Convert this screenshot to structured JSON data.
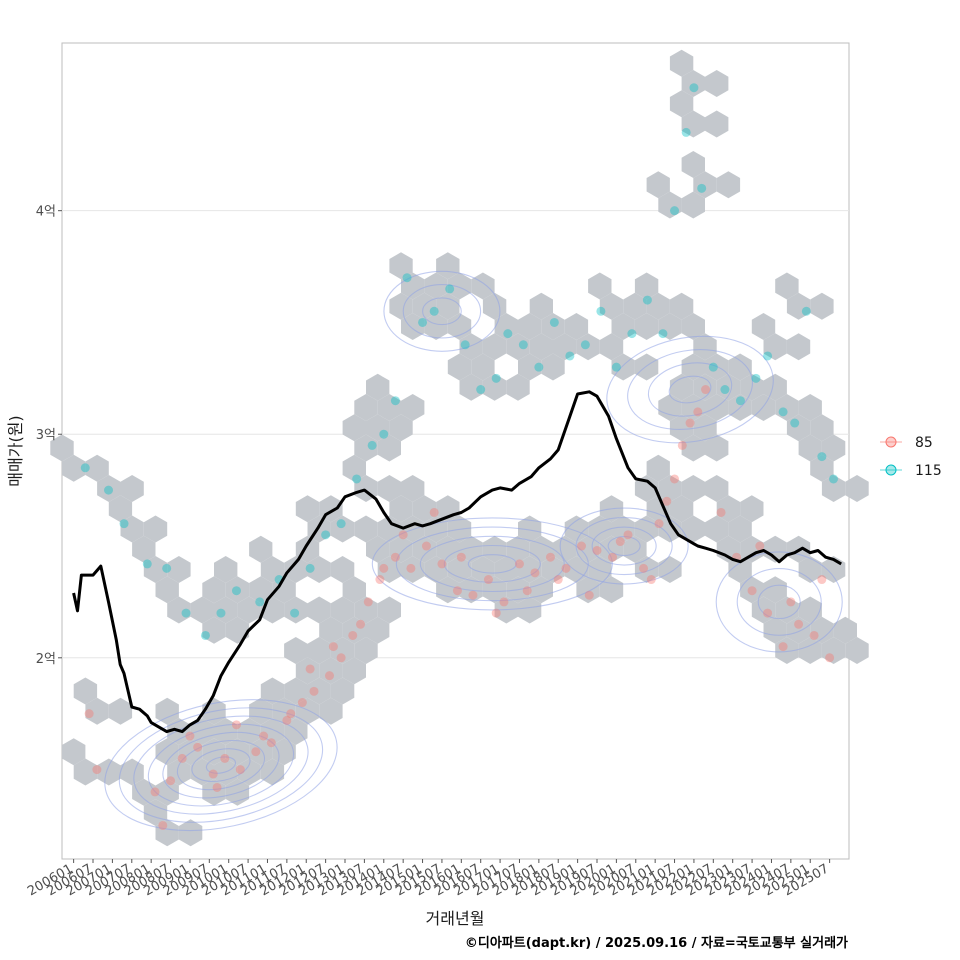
{
  "chart_data": {
    "type": "scatter",
    "xlabel": "거래년월",
    "ylabel": "매매가(원)",
    "y_ticks": [
      {
        "value": 2,
        "label": "2억"
      },
      {
        "value": 3,
        "label": "3억"
      },
      {
        "value": 4,
        "label": "4억"
      }
    ],
    "ylim": [
      1.1,
      4.75
    ],
    "xlim": [
      2005.7,
      2026.0
    ],
    "x_tick_labels": [
      "200601",
      "200607",
      "200701",
      "200707",
      "200801",
      "200807",
      "200901",
      "200907",
      "201001",
      "201007",
      "201101",
      "201107",
      "201201",
      "201207",
      "201301",
      "201307",
      "201401",
      "201407",
      "201501",
      "201507",
      "201601",
      "201607",
      "201701",
      "201707",
      "201801",
      "201807",
      "201901",
      "201907",
      "202001",
      "202007",
      "202101",
      "202107",
      "202201",
      "202207",
      "202301",
      "202307",
      "202401",
      "202407",
      "202501",
      "202507"
    ],
    "legend": {
      "placement": "right",
      "entries": [
        {
          "name": "85",
          "color": "#F8766D"
        },
        {
          "name": "115",
          "color": "#00BFC4"
        }
      ]
    },
    "trend_line": {
      "name": "moving average",
      "color": "#000000",
      "x": [
        2006.0,
        2006.1,
        2006.2,
        2006.5,
        2006.7,
        2006.9,
        2007.1,
        2007.2,
        2007.3,
        2007.5,
        2007.7,
        2007.9,
        2008.0,
        2008.2,
        2008.4,
        2008.6,
        2008.8,
        2009.0,
        2009.2,
        2009.4,
        2009.6,
        2009.8,
        2010.0,
        2010.3,
        2010.5,
        2010.8,
        2011.0,
        2011.3,
        2011.5,
        2011.8,
        2012.0,
        2012.3,
        2012.5,
        2012.8,
        2013.0,
        2013.3,
        2013.5,
        2013.8,
        2014.0,
        2014.2,
        2014.5,
        2014.8,
        2015.0,
        2015.2,
        2015.5,
        2015.8,
        2016.0,
        2016.2,
        2016.5,
        2016.8,
        2017.0,
        2017.3,
        2017.5,
        2017.8,
        2018.0,
        2018.3,
        2018.5,
        2018.8,
        2019.0,
        2019.3,
        2019.5,
        2019.8,
        2020.0,
        2020.3,
        2020.5,
        2020.8,
        2021.0,
        2021.2,
        2021.4,
        2021.6,
        2021.8,
        2022.0,
        2022.1,
        2022.3,
        2022.5,
        2022.8,
        2023.0,
        2023.2,
        2023.4,
        2023.6,
        2023.8,
        2024.0,
        2024.2,
        2024.4,
        2024.6,
        2024.8,
        2025.0,
        2025.2,
        2025.4,
        2025.6,
        2025.8
      ],
      "y": [
        2.29,
        2.21,
        2.37,
        2.37,
        2.41,
        2.25,
        2.08,
        1.97,
        1.93,
        1.78,
        1.77,
        1.74,
        1.71,
        1.69,
        1.67,
        1.68,
        1.67,
        1.7,
        1.72,
        1.77,
        1.83,
        1.92,
        1.98,
        2.06,
        2.12,
        2.17,
        2.26,
        2.32,
        2.38,
        2.44,
        2.5,
        2.58,
        2.64,
        2.67,
        2.72,
        2.74,
        2.75,
        2.71,
        2.65,
        2.6,
        2.58,
        2.6,
        2.59,
        2.6,
        2.62,
        2.64,
        2.65,
        2.67,
        2.72,
        2.75,
        2.76,
        2.75,
        2.78,
        2.81,
        2.85,
        2.89,
        2.93,
        3.08,
        3.18,
        3.19,
        3.17,
        3.08,
        2.98,
        2.85,
        2.8,
        2.79,
        2.76,
        2.68,
        2.6,
        2.55,
        2.53,
        2.51,
        2.5,
        2.49,
        2.48,
        2.46,
        2.44,
        2.43,
        2.45,
        2.47,
        2.48,
        2.46,
        2.43,
        2.46,
        2.47,
        2.49,
        2.47,
        2.48,
        2.45,
        2.44,
        2.42
      ]
    },
    "series": [
      {
        "name": "85",
        "color": "#F8766D",
        "x": [
          2006.4,
          2006.6,
          2008.1,
          2008.5,
          2008.8,
          2009.2,
          2009.6,
          2009.9,
          2010.3,
          2010.7,
          2011.1,
          2011.5,
          2011.9,
          2012.2,
          2012.6,
          2012.9,
          2013.2,
          2013.6,
          2013.9,
          2014.3,
          2014.7,
          2015.1,
          2015.5,
          2015.9,
          2016.3,
          2016.7,
          2017.1,
          2017.5,
          2017.9,
          2018.3,
          2018.7,
          2019.1,
          2019.5,
          2019.9,
          2020.3,
          2020.7,
          2021.1,
          2021.5,
          2021.9,
          2022.3,
          2022.7,
          2023.1,
          2023.5,
          2023.9,
          2024.3,
          2024.7,
          2025.1,
          2025.5,
          2008.3,
          2009.0,
          2009.7,
          2010.2,
          2010.9,
          2011.6,
          2012.1,
          2012.7,
          2013.4,
          2014.0,
          2014.5,
          2015.3,
          2016.0,
          2016.9,
          2017.7,
          2018.5,
          2019.3,
          2020.1,
          2020.9,
          2021.3,
          2021.7,
          2022.1,
          2023.7,
          2024.5,
          2025.3
        ],
        "y": [
          1.75,
          1.5,
          1.4,
          1.45,
          1.55,
          1.6,
          1.48,
          1.55,
          1.5,
          1.58,
          1.62,
          1.72,
          1.8,
          1.85,
          1.92,
          2.0,
          2.1,
          2.25,
          2.35,
          2.45,
          2.4,
          2.5,
          2.42,
          2.3,
          2.28,
          2.35,
          2.25,
          2.42,
          2.38,
          2.45,
          2.4,
          2.5,
          2.48,
          2.45,
          2.55,
          2.4,
          2.6,
          2.8,
          3.05,
          3.2,
          2.65,
          2.45,
          2.3,
          2.2,
          2.05,
          2.15,
          2.1,
          2.0,
          1.25,
          1.65,
          1.42,
          1.7,
          1.65,
          1.75,
          1.95,
          2.05,
          2.15,
          2.4,
          2.55,
          2.65,
          2.45,
          2.2,
          2.3,
          2.35,
          2.28,
          2.52,
          2.35,
          2.7,
          2.95,
          3.1,
          2.5,
          2.25,
          2.35
        ]
      },
      {
        "name": "115",
        "color": "#00BFC4",
        "x": [
          2006.3,
          2006.9,
          2007.3,
          2007.9,
          2008.4,
          2008.9,
          2009.4,
          2009.8,
          2010.2,
          2010.8,
          2011.3,
          2011.7,
          2012.1,
          2012.5,
          2012.9,
          2013.3,
          2013.7,
          2014.0,
          2014.3,
          2014.6,
          2015.0,
          2015.3,
          2015.7,
          2016.1,
          2016.5,
          2016.9,
          2017.2,
          2017.6,
          2018.0,
          2018.4,
          2018.8,
          2019.2,
          2019.6,
          2020.0,
          2020.4,
          2020.8,
          2021.2,
          2021.5,
          2021.8,
          2022.0,
          2022.2,
          2022.5,
          2022.8,
          2023.2,
          2023.6,
          2023.9,
          2024.3,
          2024.6,
          2024.9,
          2025.3,
          2025.6
        ],
        "y": [
          2.85,
          2.75,
          2.6,
          2.42,
          2.4,
          2.2,
          2.1,
          2.2,
          2.3,
          2.25,
          2.35,
          2.2,
          2.4,
          2.55,
          2.6,
          2.8,
          2.95,
          3.0,
          3.15,
          3.7,
          3.5,
          3.55,
          3.65,
          3.4,
          3.2,
          3.25,
          3.45,
          3.4,
          3.3,
          3.5,
          3.35,
          3.4,
          3.55,
          3.3,
          3.45,
          3.6,
          3.45,
          4.0,
          4.35,
          4.55,
          4.1,
          3.3,
          3.2,
          3.15,
          3.25,
          3.35,
          3.1,
          3.05,
          3.55,
          2.9,
          2.8
        ]
      }
    ]
  },
  "credit": "©디아파트(dapt.kr) / 2025.09.16 / 자료=국토교통부 실거래가"
}
